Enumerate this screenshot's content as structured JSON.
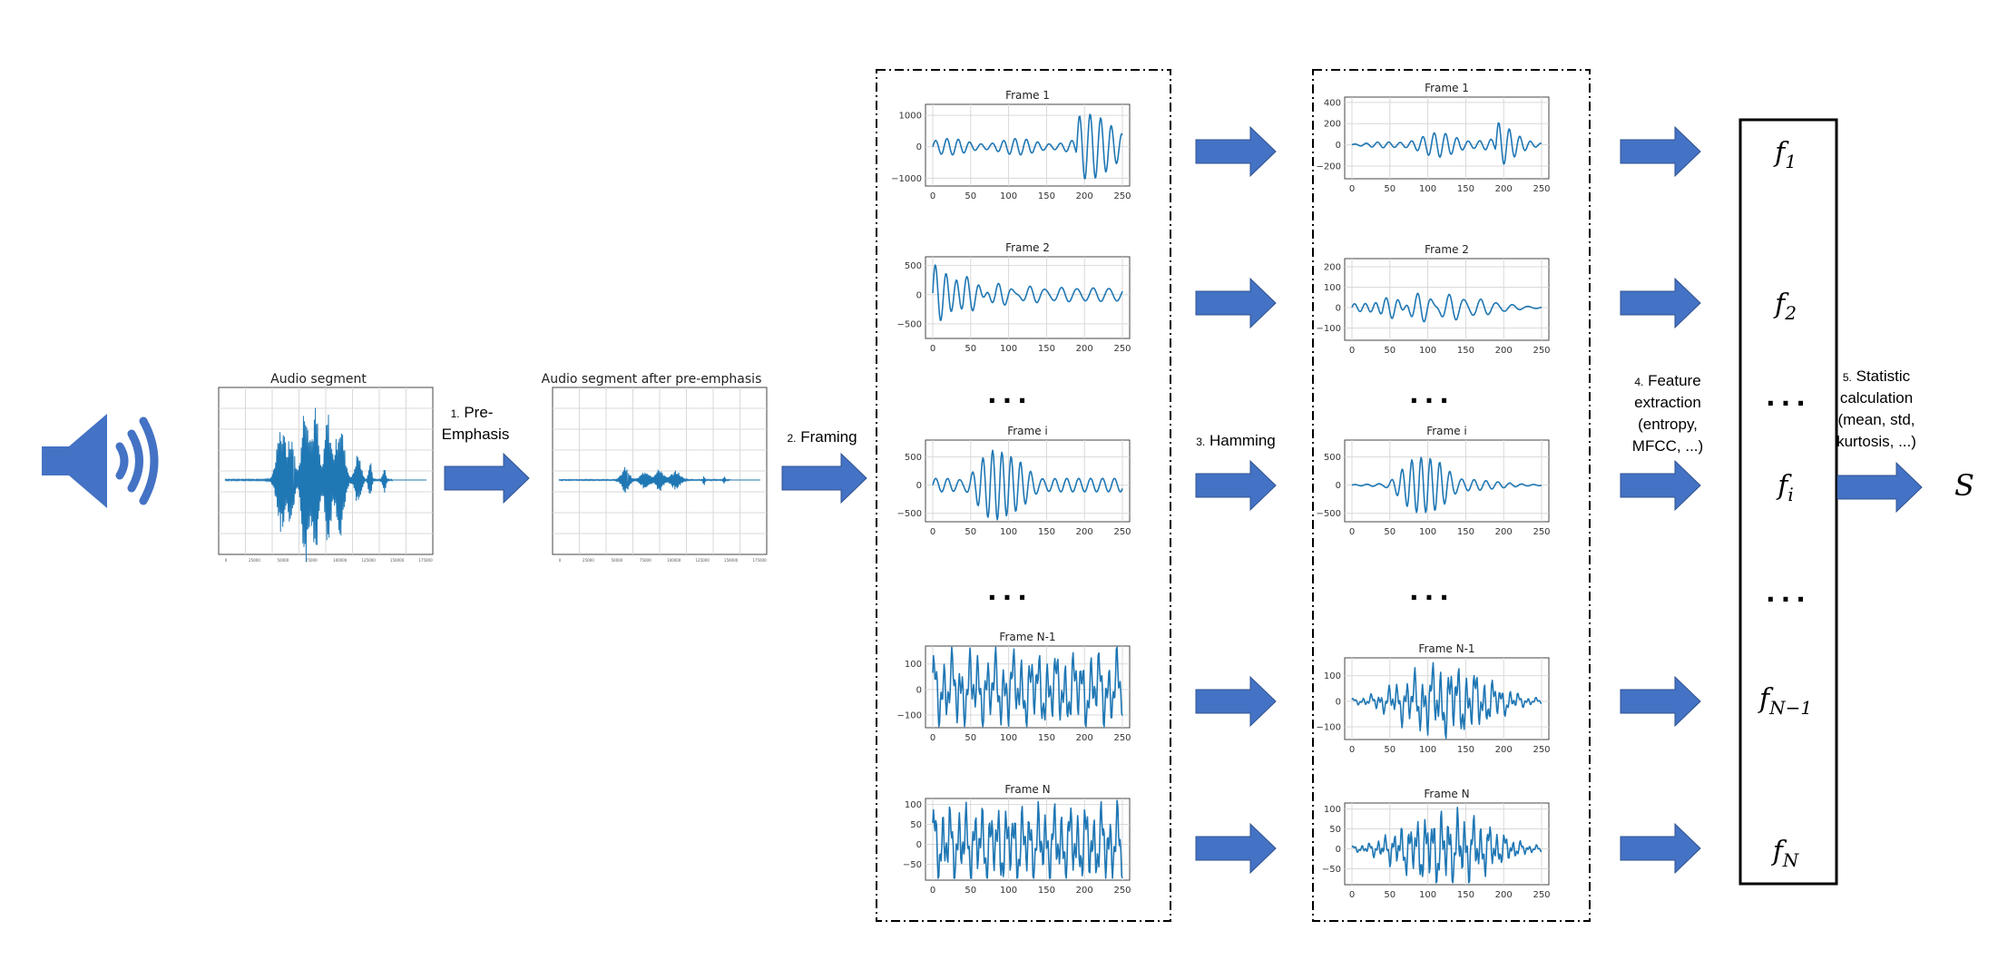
{
  "colors": {
    "arrow": "#4472C4",
    "signal": "#1f77b4",
    "speaker": "#4472C4"
  },
  "icons": {
    "speaker": "speaker-sound-icon"
  },
  "audio_plots": {
    "original_title": "Audio segment",
    "preemph_title": "Audio segment after pre-emphasis"
  },
  "steps": {
    "pre_emphasis": {
      "num": "1.",
      "line1": "Pre-",
      "line2": "Emphasis"
    },
    "framing": {
      "num": "2.",
      "text": "Framing"
    },
    "hamming": {
      "num": "3.",
      "text": "Hamming"
    },
    "feature": {
      "num": "4.",
      "line1": "Feature",
      "line2": "extraction",
      "line3": "(entropy,",
      "line4": "MFCC, ...)"
    },
    "statistic": {
      "num": "5.",
      "line1": "Statistic",
      "line2": "calculation",
      "line3": "(mean, std,",
      "line4": "kurtosis, ...)"
    }
  },
  "ellipsis": "...",
  "frames": [
    {
      "title": "Frame 1",
      "left_yticks": [
        "1000",
        "0",
        "−1000"
      ],
      "right_yticks": [
        "400",
        "200",
        "0",
        "−200"
      ]
    },
    {
      "title": "Frame 2",
      "left_yticks": [
        "500",
        "0",
        "−500"
      ],
      "right_yticks": [
        "200",
        "100",
        "0",
        "−100"
      ]
    },
    {
      "title": "Frame i",
      "left_yticks": [
        "500",
        "0",
        "−500"
      ],
      "right_yticks": [
        "500",
        "0",
        "−500"
      ]
    },
    {
      "title": "Frame N-1",
      "left_yticks": [
        "100",
        "0",
        "−100"
      ],
      "right_yticks": [
        "100",
        "0",
        "−100"
      ]
    },
    {
      "title": "Frame N",
      "left_yticks": [
        "100",
        "50",
        "0",
        "−50"
      ],
      "right_yticks": [
        "100",
        "50",
        "0",
        "−50"
      ]
    }
  ],
  "xticks": [
    "0",
    "50",
    "100",
    "150",
    "200",
    "250"
  ],
  "features": [
    {
      "base": "f",
      "sub": "1"
    },
    {
      "base": "f",
      "sub": "2"
    },
    {
      "base": "...",
      "sub": ""
    },
    {
      "base": "f",
      "sub": "i"
    },
    {
      "base": "...",
      "sub": ""
    },
    {
      "base": "f",
      "sub": "N−1"
    },
    {
      "base": "f",
      "sub": "N"
    }
  ],
  "output": "S"
}
